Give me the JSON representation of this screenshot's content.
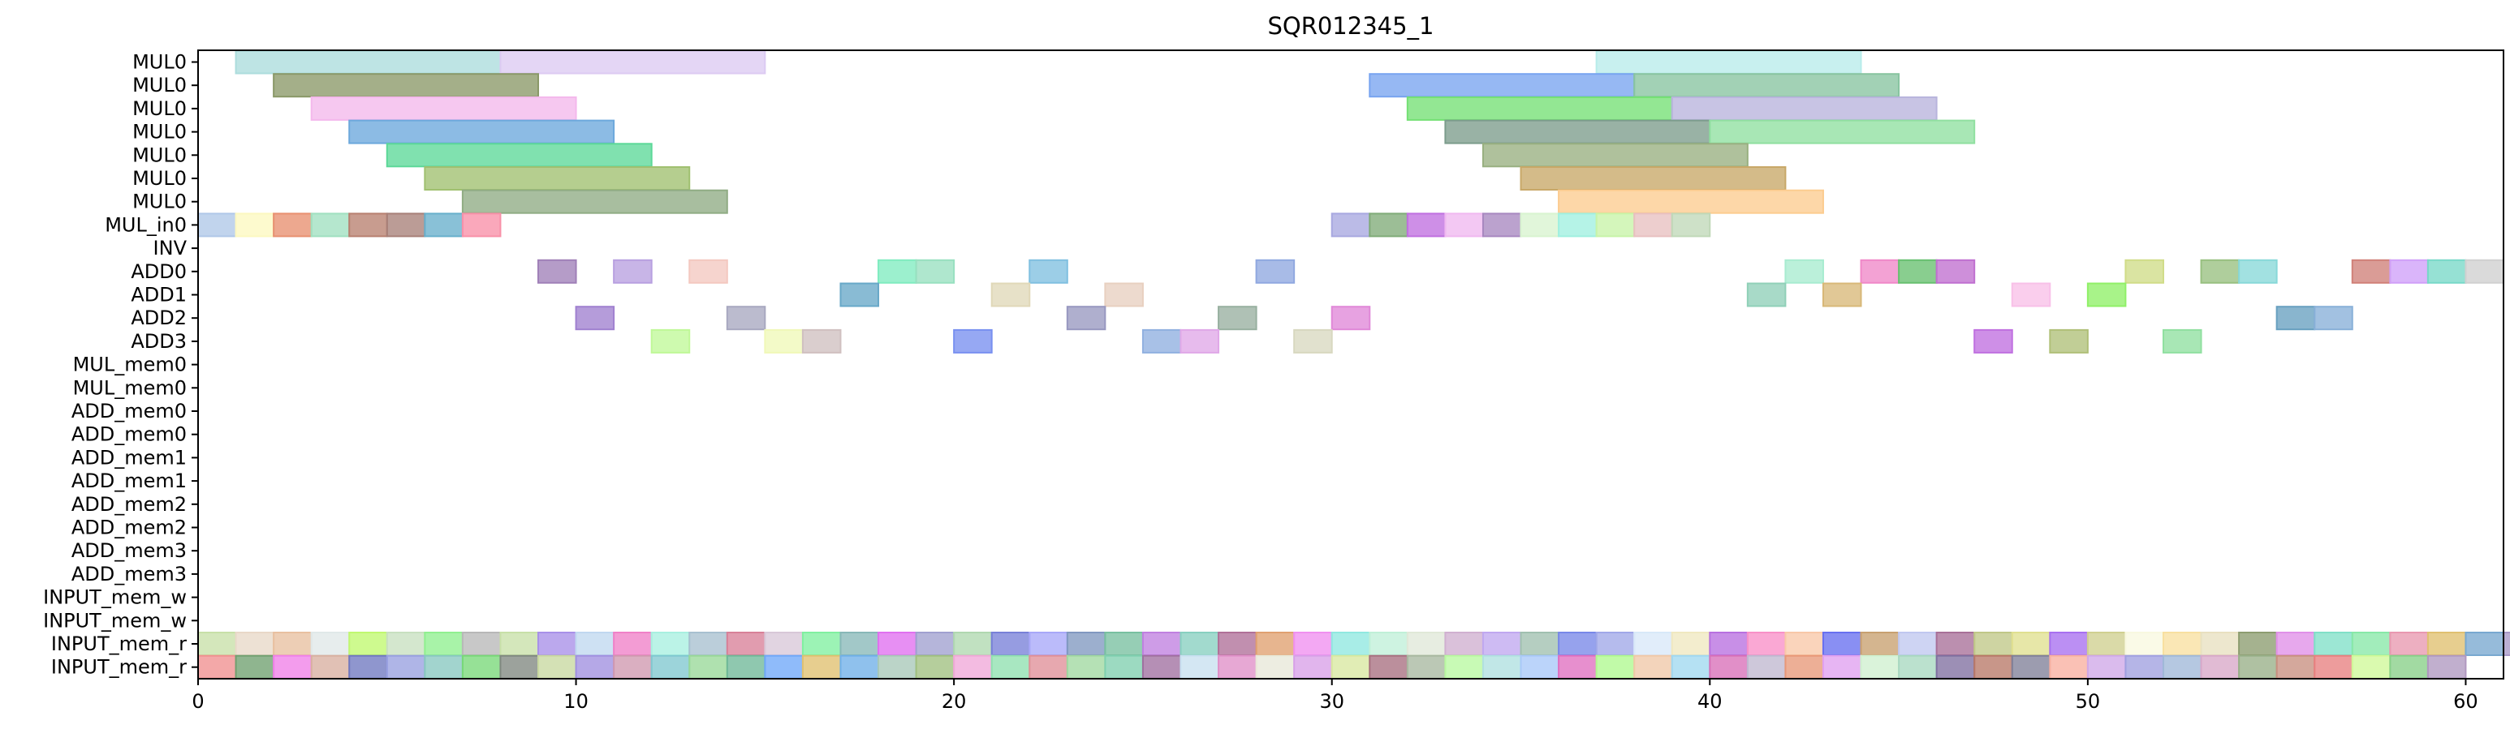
{
  "chart_data": {
    "type": "gantt",
    "title": "SQR012345_1",
    "xlabel": "",
    "ylabel": "",
    "xlim": [
      0,
      61
    ],
    "xticks": [
      0,
      10,
      20,
      30,
      40,
      50,
      60
    ],
    "grid": false,
    "rows": [
      "MUL0",
      "MUL0",
      "MUL0",
      "MUL0",
      "MUL0",
      "MUL0",
      "MUL0",
      "MUL_in0",
      "INV",
      "ADD0",
      "ADD1",
      "ADD2",
      "ADD3",
      "MUL_mem0",
      "MUL_mem0",
      "ADD_mem0",
      "ADD_mem0",
      "ADD_mem1",
      "ADD_mem1",
      "ADD_mem2",
      "ADD_mem2",
      "ADD_mem3",
      "ADD_mem3",
      "INPUT_mem_w",
      "INPUT_mem_w",
      "INPUT_mem_r",
      "INPUT_mem_r"
    ],
    "tasks": [
      {
        "row": 0,
        "start": 1,
        "end": 8,
        "color": "#acdcdc"
      },
      {
        "row": 0,
        "start": 8,
        "end": 15,
        "color": "#dccaf2"
      },
      {
        "row": 0,
        "start": 37,
        "end": 44,
        "color": "#b8ecea"
      },
      {
        "row": 1,
        "start": 2,
        "end": 9,
        "color": "#8a9868"
      },
      {
        "row": 1,
        "start": 31,
        "end": 38,
        "color": "#78a4f0"
      },
      {
        "row": 1,
        "start": 38,
        "end": 45,
        "color": "#88c4a0"
      },
      {
        "row": 2,
        "start": 3,
        "end": 10,
        "color": "#f4b8ec"
      },
      {
        "row": 2,
        "start": 32,
        "end": 39,
        "color": "#74e074"
      },
      {
        "row": 2,
        "start": 39,
        "end": 46,
        "color": "#b8b4dc"
      },
      {
        "row": 3,
        "start": 4,
        "end": 11,
        "color": "#6ca8dc"
      },
      {
        "row": 3,
        "start": 33,
        "end": 40,
        "color": "#7c9c8c"
      },
      {
        "row": 3,
        "start": 40,
        "end": 47,
        "color": "#90e0a0"
      },
      {
        "row": 4,
        "start": 5,
        "end": 12,
        "color": "#5cd898"
      },
      {
        "row": 4,
        "start": 34,
        "end": 41,
        "color": "#98b080"
      },
      {
        "row": 5,
        "start": 6,
        "end": 13,
        "color": "#a0c070"
      },
      {
        "row": 5,
        "start": 35,
        "end": 42,
        "color": "#c8a868"
      },
      {
        "row": 6,
        "start": 7,
        "end": 14,
        "color": "#90ac84"
      },
      {
        "row": 6,
        "start": 36,
        "end": 43,
        "color": "#fccc90"
      },
      {
        "row": 7,
        "start": 0,
        "end": 1,
        "color": "#b0c8e8"
      },
      {
        "row": 7,
        "start": 1,
        "end": 2,
        "color": "#fcf8c0"
      },
      {
        "row": 7,
        "start": 2,
        "end": 3,
        "color": "#e89070"
      },
      {
        "row": 7,
        "start": 3,
        "end": 4,
        "color": "#a0e0c0"
      },
      {
        "row": 7,
        "start": 4,
        "end": 5,
        "color": "#b88070"
      },
      {
        "row": 7,
        "start": 5,
        "end": 6,
        "color": "#a88078"
      },
      {
        "row": 7,
        "start": 6,
        "end": 7,
        "color": "#68b0cc"
      },
      {
        "row": 7,
        "start": 7,
        "end": 8,
        "color": "#f890a8"
      },
      {
        "row": 7,
        "start": 30,
        "end": 31,
        "color": "#a8a8e0"
      },
      {
        "row": 7,
        "start": 31,
        "end": 32,
        "color": "#80ac78"
      },
      {
        "row": 7,
        "start": 32,
        "end": 33,
        "color": "#c070e0"
      },
      {
        "row": 7,
        "start": 33,
        "end": 34,
        "color": "#f0b8f0"
      },
      {
        "row": 7,
        "start": 34,
        "end": 35,
        "color": "#a888c0"
      },
      {
        "row": 7,
        "start": 35,
        "end": 36,
        "color": "#d8f4d0"
      },
      {
        "row": 7,
        "start": 36,
        "end": 37,
        "color": "#a0f0e0"
      },
      {
        "row": 7,
        "start": 37,
        "end": 38,
        "color": "#c8f4a8"
      },
      {
        "row": 7,
        "start": 38,
        "end": 39,
        "color": "#e8c0c0"
      },
      {
        "row": 7,
        "start": 39,
        "end": 40,
        "color": "#c0d8b8"
      },
      {
        "row": 9,
        "start": 9,
        "end": 10,
        "color": "#a080b8"
      },
      {
        "row": 9,
        "start": 11,
        "end": 12,
        "color": "#b8a0e0"
      },
      {
        "row": 9,
        "start": 13,
        "end": 14,
        "color": "#f4c8c0"
      },
      {
        "row": 9,
        "start": 18,
        "end": 19,
        "color": "#80ecc0"
      },
      {
        "row": 9,
        "start": 19,
        "end": 20,
        "color": "#98e0c0"
      },
      {
        "row": 9,
        "start": 22,
        "end": 23,
        "color": "#80c0e0"
      },
      {
        "row": 9,
        "start": 28,
        "end": 29,
        "color": "#90a8e0"
      },
      {
        "row": 9,
        "start": 42,
        "end": 43,
        "color": "#a8ecd0"
      },
      {
        "row": 9,
        "start": 44,
        "end": 45,
        "color": "#f088c8"
      },
      {
        "row": 9,
        "start": 45,
        "end": 46,
        "color": "#68c070"
      },
      {
        "row": 9,
        "start": 46,
        "end": 47,
        "color": "#c070d0"
      },
      {
        "row": 9,
        "start": 51,
        "end": 52,
        "color": "#d0dc88"
      },
      {
        "row": 9,
        "start": 53,
        "end": 54,
        "color": "#98c080"
      },
      {
        "row": 9,
        "start": 54,
        "end": 55,
        "color": "#88d8d8"
      },
      {
        "row": 9,
        "start": 57,
        "end": 58,
        "color": "#d08078"
      },
      {
        "row": 9,
        "start": 58,
        "end": 59,
        "color": "#d0a0f8"
      },
      {
        "row": 9,
        "start": 59,
        "end": 60,
        "color": "#78d8c8"
      },
      {
        "row": 9,
        "start": 60,
        "end": 61,
        "color": "#d0d0d0"
      },
      {
        "row": 10,
        "start": 17,
        "end": 18,
        "color": "#68a8c8"
      },
      {
        "row": 10,
        "start": 21,
        "end": 22,
        "color": "#e0d8b8"
      },
      {
        "row": 10,
        "start": 24,
        "end": 25,
        "color": "#e8d0c0"
      },
      {
        "row": 10,
        "start": 41,
        "end": 42,
        "color": "#90d0b8"
      },
      {
        "row": 10,
        "start": 43,
        "end": 44,
        "color": "#d8b878"
      },
      {
        "row": 10,
        "start": 48,
        "end": 49,
        "color": "#f8c0e8"
      },
      {
        "row": 10,
        "start": 50,
        "end": 51,
        "color": "#90f068"
      },
      {
        "row": 11,
        "start": 10,
        "end": 11,
        "color": "#a080d0"
      },
      {
        "row": 11,
        "start": 14,
        "end": 15,
        "color": "#a8a8c0"
      },
      {
        "row": 11,
        "start": 23,
        "end": 24,
        "color": "#9898c0"
      },
      {
        "row": 11,
        "start": 27,
        "end": 28,
        "color": "#98b0a0"
      },
      {
        "row": 11,
        "start": 30,
        "end": 31,
        "color": "#e088d8"
      },
      {
        "row": 11,
        "start": 55,
        "end": 56,
        "color": "#68a0c0"
      },
      {
        "row": 11,
        "start": 56,
        "end": 57,
        "color": "#88b0d8"
      },
      {
        "row": 12,
        "start": 12,
        "end": 13,
        "color": "#c0f898"
      },
      {
        "row": 12,
        "start": 15,
        "end": 16,
        "color": "#f0f8b8"
      },
      {
        "row": 12,
        "start": 16,
        "end": 17,
        "color": "#d0c0c0"
      },
      {
        "row": 12,
        "start": 20,
        "end": 21,
        "color": "#7890f0"
      },
      {
        "row": 12,
        "start": 25,
        "end": 26,
        "color": "#90b0e0"
      },
      {
        "row": 12,
        "start": 26,
        "end": 27,
        "color": "#e0a8e8"
      },
      {
        "row": 12,
        "start": 29,
        "end": 30,
        "color": "#d8d8c0"
      },
      {
        "row": 12,
        "start": 47,
        "end": 48,
        "color": "#c070e0"
      },
      {
        "row": 12,
        "start": 49,
        "end": 50,
        "color": "#b0c078"
      },
      {
        "row": 12,
        "start": 52,
        "end": 53,
        "color": "#90e0a0"
      }
    ],
    "dense_rows": {
      "25": {
        "start": 0,
        "colors": [
          "#c8e0a8",
          "#e8d8c8",
          "#e8c0a0",
          "#e0e8e8",
          "#c0f870",
          "#c8e0c0",
          "#90f090",
          "#b8b8b8",
          "#c8e0a8",
          "#a890e8",
          "#c0d8f0",
          "#f080c8",
          "#a8f0e0",
          "#a8c0d0",
          "#d88098",
          "#d8c8d8",
          "#80f0a0",
          "#88b8b8",
          "#e070f0",
          "#a0a0d0",
          "#b0d8b0",
          "#7880d8",
          "#a8a8f8",
          "#8098c0",
          "#78c0a0",
          "#c080e0",
          "#88d0c0",
          "#b07098",
          "#e0a070",
          "#f090f0",
          "#90e8e0",
          "#c0f0d8",
          "#e0e8d8",
          "#d0b0d0",
          "#c0a8f0",
          "#a0c0b0",
          "#7888e8",
          "#a0a8e8",
          "#d8e8f8",
          "#f0e8c0",
          "#b870e0",
          "#f890c8",
          "#f8c8a8",
          "#6870f0",
          "#c8a070",
          "#c0c8f0",
          "#a87098",
          "#c0c888",
          "#e0e090",
          "#a870f0",
          "#d0d090",
          "#f8f8e0",
          "#f8e0a0",
          "#e8e0c0",
          "#8c9c70",
          "#e090e8",
          "#80e0c8",
          "#88e8a8",
          "#e898b0",
          "#e0c070",
          "#78a8d0",
          "#a898c8",
          "#c8a0e0"
        ]
      },
      "26": {
        "start": 0,
        "colors": [
          "#f09090",
          "#70a070",
          "#f080e8",
          "#d8b0a0",
          "#7078c0",
          "#98a0e0",
          "#88c8c0",
          "#78d878",
          "#808880",
          "#c8d8a0",
          "#a090e0",
          "#d098b0",
          "#80c8d0",
          "#98d898",
          "#70b898",
          "#70a8f8",
          "#e0c070",
          "#70b0e8",
          "#a8c8b8",
          "#a0c080",
          "#f0a8d8",
          "#90e0b0",
          "#e09098",
          "#a0d8a0",
          "#80d0b0",
          "#a070a0",
          "#c8e0f0",
          "#e090c8",
          "#e8e8d8",
          "#d8a0e8",
          "#d8e8a0",
          "#a87080",
          "#a8b8a0",
          "#b8f8a0",
          "#b0e0e0",
          "#a8c8f8",
          "#e070c0",
          "#b0f890",
          "#f0c8a8",
          "#a0d8f0",
          "#d870b8",
          "#c0b8d0",
          "#e89878",
          "#e0a0f0",
          "#d0f0d0",
          "#a8d8c0",
          "#8070a0",
          "#b87868",
          "#808098",
          "#f8b0a0",
          "#d0a8e8",
          "#a0a0e0",
          "#a0b8d8",
          "#d8a8c8",
          "#98b088",
          "#c89080",
          "#e88080",
          "#d0f898",
          "#88d088",
          "#b098c0"
        ]
      }
    }
  }
}
